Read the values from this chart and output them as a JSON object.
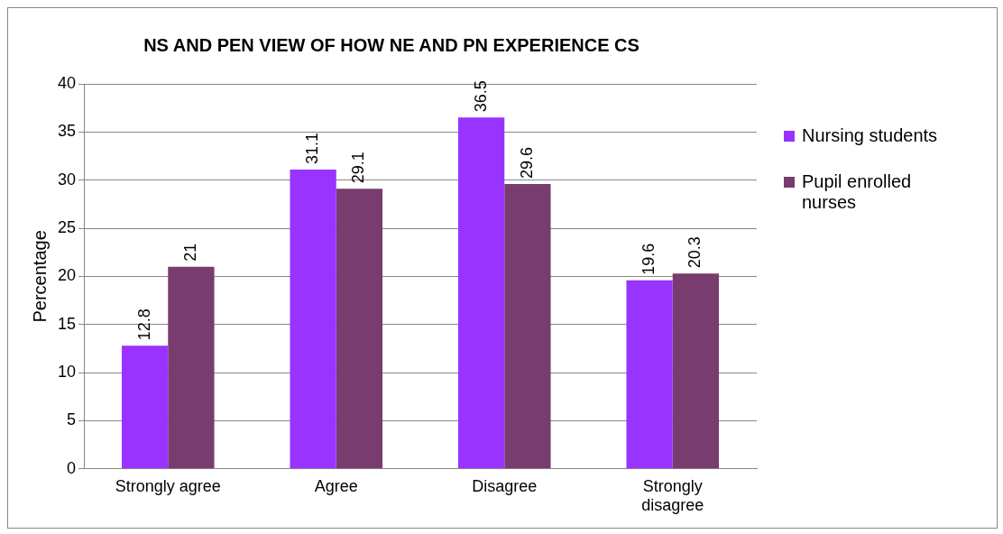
{
  "chart_data": {
    "type": "bar",
    "title": "NS AND PEN VIEW OF HOW NE AND PN EXPERIENCE CS",
    "ylabel": "Percentage",
    "categories": [
      "Strongly agree",
      "Agree",
      "Disagree",
      "Strongly disagree"
    ],
    "series": [
      {
        "name": "Nursing students",
        "color": "#9933ff",
        "values": [
          12.8,
          31.1,
          36.5,
          19.6
        ]
      },
      {
        "name": "Pupil enrolled nurses",
        "color": "#783c6e",
        "values": [
          21,
          29.1,
          29.6,
          20.3
        ]
      }
    ],
    "ylim": [
      0,
      40
    ],
    "yticks": [
      0,
      5,
      10,
      15,
      20,
      25,
      30,
      35,
      40
    ],
    "grid": "y",
    "legend": "right",
    "data_labels": true
  }
}
